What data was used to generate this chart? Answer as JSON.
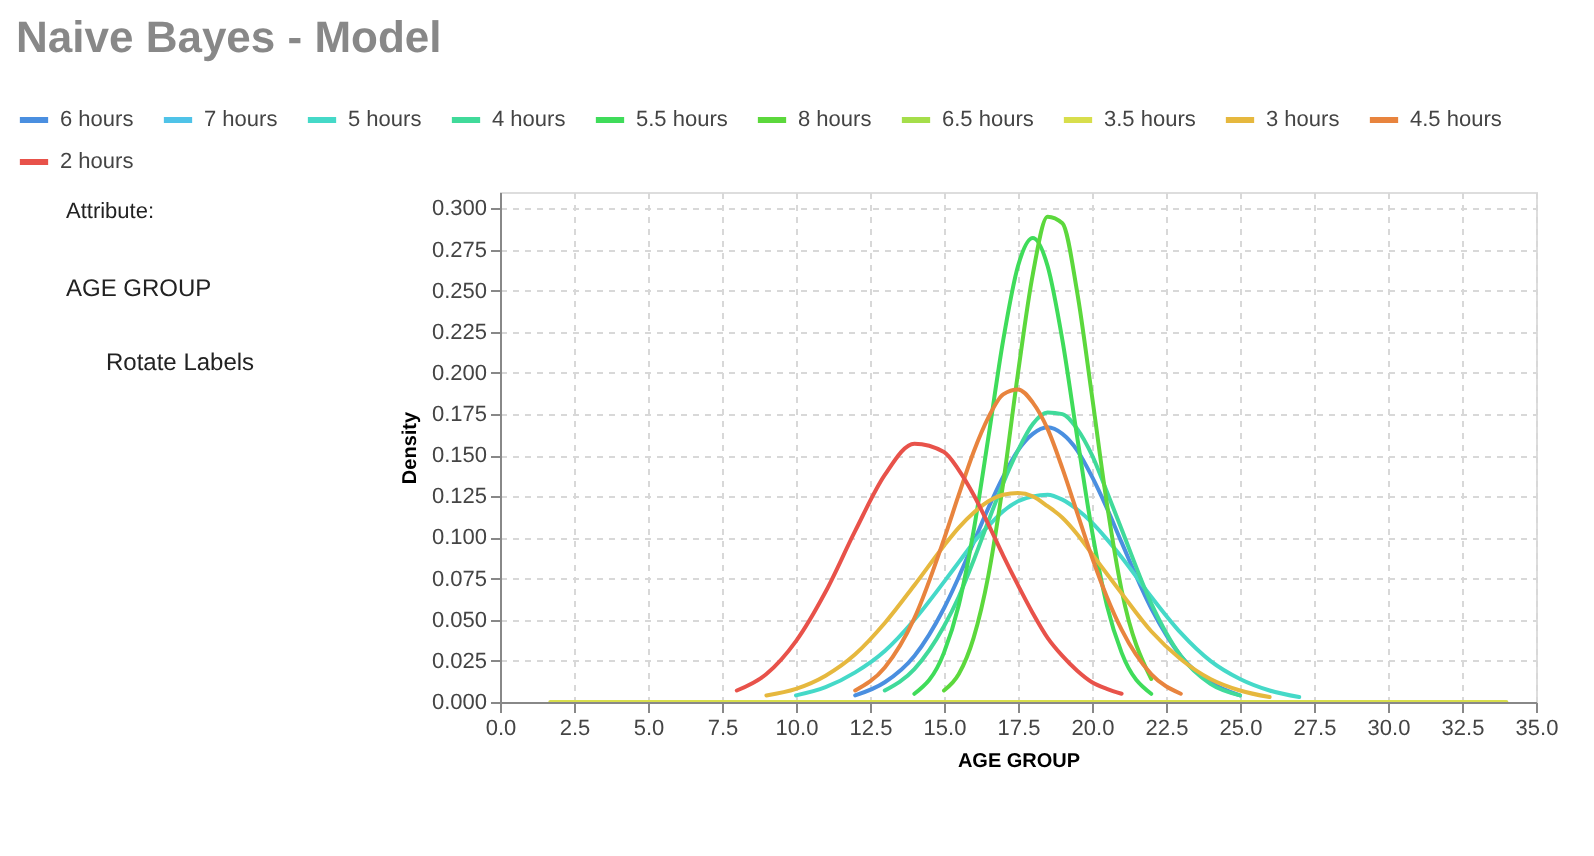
{
  "chart_data": {
    "type": "line",
    "title": "Naive Bayes - Model",
    "xlabel": "AGE GROUP",
    "ylabel": "Density",
    "annotations": [
      "Attribute:",
      "AGE GROUP",
      "Rotate Labels"
    ],
    "x": [
      1.7,
      5,
      7,
      8,
      9,
      10,
      11,
      12,
      13,
      14,
      15,
      15.5,
      16,
      16.5,
      17,
      17.5,
      18,
      18.5,
      19,
      19.5,
      20,
      20.5,
      21,
      22,
      23,
      24,
      25,
      26,
      27,
      28,
      30,
      34
    ],
    "xlim": [
      0,
      35
    ],
    "ylim": [
      0,
      0.31
    ],
    "xticks": [
      {
        "value": 0,
        "label": "0.0"
      },
      {
        "value": 2.5,
        "label": "2.5"
      },
      {
        "value": 5,
        "label": "5.0"
      },
      {
        "value": 7.5,
        "label": "7.5"
      },
      {
        "value": 10,
        "label": "10.0"
      },
      {
        "value": 12.5,
        "label": "12.5"
      },
      {
        "value": 15,
        "label": "15.0"
      },
      {
        "value": 17.5,
        "label": "17.5"
      },
      {
        "value": 20,
        "label": "20.0"
      },
      {
        "value": 22.5,
        "label": "22.5"
      },
      {
        "value": 25,
        "label": "25.0"
      },
      {
        "value": 27.5,
        "label": "27.5"
      },
      {
        "value": 30,
        "label": "30.0"
      },
      {
        "value": 32.5,
        "label": "32.5"
      },
      {
        "value": 35,
        "label": "35.0"
      }
    ],
    "yticks": [
      {
        "value": 0,
        "label": "0.000"
      },
      {
        "value": 0.025,
        "label": "0.025"
      },
      {
        "value": 0.05,
        "label": "0.050"
      },
      {
        "value": 0.075,
        "label": "0.075"
      },
      {
        "value": 0.1,
        "label": "0.100"
      },
      {
        "value": 0.125,
        "label": "0.125"
      },
      {
        "value": 0.15,
        "label": "0.150"
      },
      {
        "value": 0.175,
        "label": "0.175"
      },
      {
        "value": 0.2,
        "label": "0.200"
      },
      {
        "value": 0.225,
        "label": "0.225"
      },
      {
        "value": 0.25,
        "label": "0.250"
      },
      {
        "value": 0.275,
        "label": "0.275"
      },
      {
        "value": 0.3,
        "label": "0.300"
      }
    ],
    "grid": true,
    "legend": "top",
    "marker": "none",
    "line_style": "solid",
    "series": [
      {
        "name": "6 hours",
        "color": "#4a8fe0",
        "values": [
          null,
          null,
          null,
          null,
          null,
          null,
          null,
          0.004,
          0.012,
          0.028,
          0.057,
          0.076,
          0.097,
          0.118,
          0.137,
          0.153,
          0.163,
          0.167,
          0.163,
          0.153,
          0.137,
          0.118,
          0.097,
          0.057,
          0.028,
          0.012,
          0.004,
          null,
          null,
          null,
          null,
          null
        ]
      },
      {
        "name": "7 hours",
        "color": "#4fc3e8",
        "values": [
          null,
          null,
          null,
          null,
          null,
          null,
          null,
          null,
          null,
          null,
          null,
          null,
          null,
          null,
          null,
          null,
          null,
          null,
          null,
          null,
          null,
          null,
          null,
          null,
          null,
          null,
          null,
          null,
          null,
          null,
          null,
          null
        ]
      },
      {
        "name": "5 hours",
        "color": "#45d9c8",
        "values": [
          null,
          null,
          null,
          null,
          null,
          0.004,
          0.009,
          0.018,
          0.031,
          0.05,
          0.073,
          0.085,
          0.097,
          0.107,
          0.116,
          0.122,
          0.125,
          0.126,
          0.123,
          0.117,
          0.109,
          0.099,
          0.088,
          0.064,
          0.042,
          0.025,
          0.014,
          0.007,
          0.003,
          null,
          null,
          null
        ]
      },
      {
        "name": "4 hours",
        "color": "#40da9a",
        "values": [
          null,
          null,
          null,
          null,
          null,
          null,
          null,
          null,
          0.007,
          0.02,
          0.046,
          0.064,
          0.086,
          0.11,
          0.133,
          0.153,
          0.169,
          0.176,
          0.175,
          0.166,
          0.15,
          0.128,
          0.105,
          0.06,
          0.028,
          0.011,
          0.004,
          null,
          null,
          null,
          null,
          null
        ]
      },
      {
        "name": "5.5 hours",
        "color": "#3fdc5a",
        "values": [
          null,
          null,
          null,
          null,
          null,
          null,
          null,
          null,
          null,
          0.005,
          0.03,
          0.059,
          0.104,
          0.161,
          0.22,
          0.265,
          0.282,
          0.265,
          0.22,
          0.161,
          0.104,
          0.059,
          0.03,
          0.005,
          null,
          null,
          null,
          null,
          null,
          null,
          null,
          null
        ]
      },
      {
        "name": "8 hours",
        "color": "#5cd83c",
        "values": [
          null,
          null,
          null,
          null,
          null,
          null,
          null,
          null,
          null,
          null,
          0.007,
          0.017,
          0.039,
          0.077,
          0.133,
          0.2,
          0.26,
          0.295,
          0.291,
          0.249,
          0.186,
          0.121,
          0.068,
          0.014,
          null,
          null,
          null,
          null,
          null,
          null,
          null,
          null
        ]
      },
      {
        "name": "6.5 hours",
        "color": "#a5de4a",
        "values": [
          null,
          null,
          null,
          null,
          null,
          null,
          null,
          null,
          null,
          null,
          null,
          null,
          null,
          null,
          null,
          null,
          null,
          null,
          null,
          null,
          null,
          null,
          null,
          null,
          null,
          null,
          null,
          null,
          null,
          null,
          null,
          null
        ]
      },
      {
        "name": "3.5 hours",
        "color": "#d8de4c",
        "values": [
          0,
          0,
          0,
          0,
          0,
          0,
          0,
          0,
          0,
          0,
          0,
          0,
          0,
          0,
          0,
          0,
          0,
          0,
          0,
          0,
          0,
          0,
          0,
          0,
          0,
          0,
          0,
          0,
          0,
          0,
          0,
          0
        ]
      },
      {
        "name": "3 hours",
        "color": "#e6b83e",
        "values": [
          null,
          null,
          null,
          null,
          0.004,
          0.008,
          0.016,
          0.029,
          0.048,
          0.071,
          0.095,
          0.106,
          0.115,
          0.122,
          0.126,
          0.127,
          0.125,
          0.119,
          0.112,
          0.102,
          0.09,
          0.078,
          0.066,
          0.043,
          0.026,
          0.014,
          0.007,
          0.003,
          null,
          null,
          null,
          null
        ]
      },
      {
        "name": "4.5 hours",
        "color": "#e8843e",
        "values": [
          null,
          null,
          null,
          null,
          null,
          null,
          null,
          0.007,
          0.021,
          0.051,
          0.099,
          0.126,
          0.152,
          0.173,
          0.187,
          0.19,
          0.182,
          0.166,
          0.142,
          0.115,
          0.088,
          0.064,
          0.044,
          0.017,
          0.005,
          null,
          null,
          null,
          null,
          null,
          null,
          null
        ]
      },
      {
        "name": "2 hours",
        "color": "#e8524a",
        "values": [
          null,
          null,
          null,
          0.007,
          0.017,
          0.037,
          0.067,
          0.104,
          0.138,
          0.157,
          0.152,
          0.141,
          0.126,
          0.108,
          0.089,
          0.071,
          0.054,
          0.039,
          0.028,
          0.019,
          0.012,
          0.008,
          0.005,
          null,
          null,
          null,
          null,
          null,
          null,
          null,
          null,
          null
        ]
      }
    ]
  }
}
